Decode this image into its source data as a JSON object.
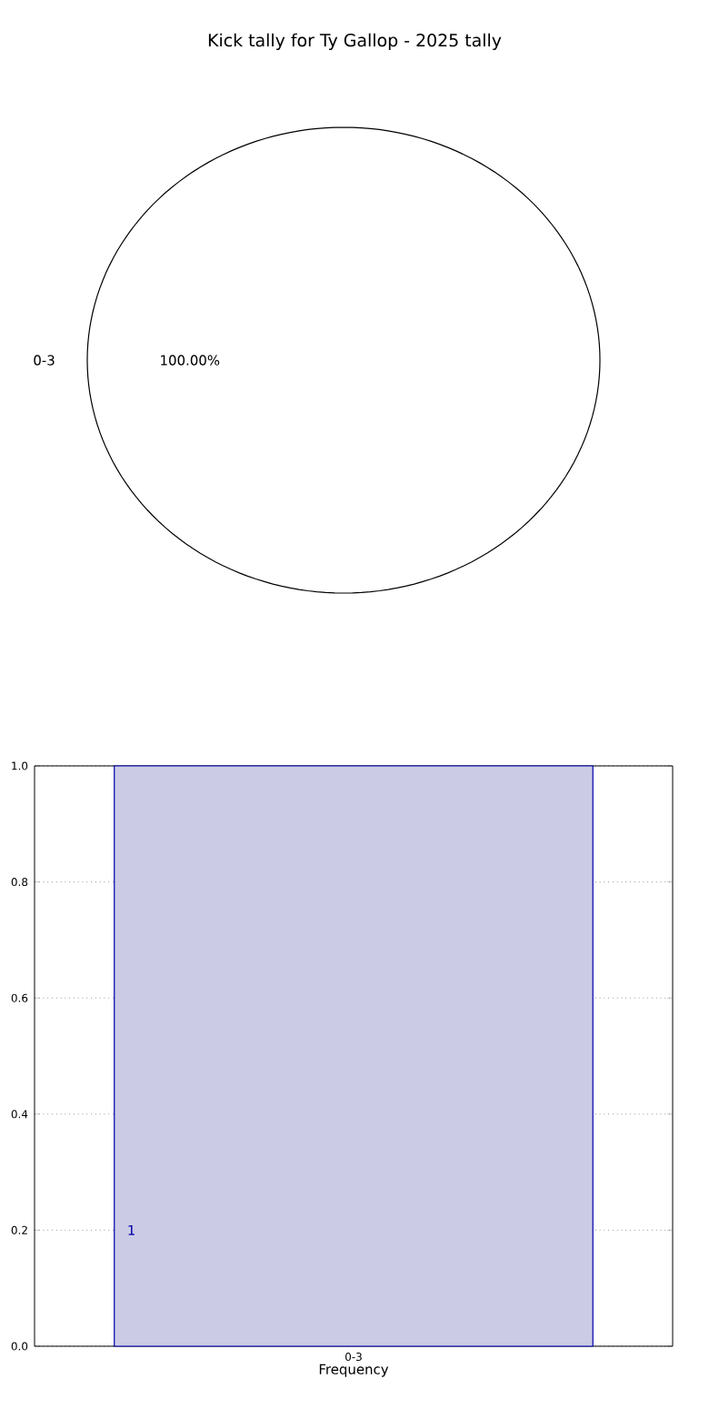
{
  "chart_data": [
    {
      "type": "pie",
      "title": "Kick tally for Ty Gallop - 2025 tally",
      "categories": [
        "0-3"
      ],
      "values": [
        100
      ],
      "colors": [
        "#ffffff"
      ],
      "value_labels": [
        "100.00%"
      ]
    },
    {
      "type": "bar",
      "categories": [
        "0-3"
      ],
      "values": [
        1
      ],
      "color": "#cbcbe6",
      "xlabel": "Frequency",
      "ylim": [
        0,
        1
      ],
      "yticks": [
        {
          "value": 0,
          "label": "0.0"
        },
        {
          "value": 0.2,
          "label": "0.2"
        },
        {
          "value": 0.4,
          "label": "0.4"
        },
        {
          "value": 0.6,
          "label": "0.6"
        },
        {
          "value": 0.8,
          "label": "0.8"
        },
        {
          "value": 1,
          "label": "1.0"
        }
      ],
      "grid": true,
      "value_labels": [
        "1"
      ]
    }
  ]
}
